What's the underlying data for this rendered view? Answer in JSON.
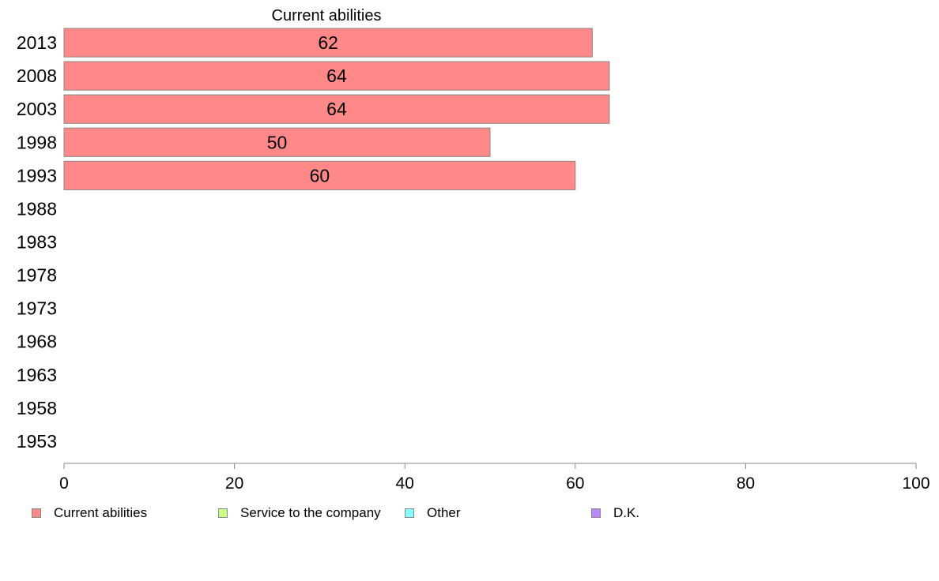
{
  "chart_data": {
    "type": "bar",
    "orientation": "horizontal",
    "stacked": true,
    "title": "Current abilities",
    "categories": [
      "2013",
      "2008",
      "2003",
      "1998",
      "1993",
      "1988",
      "1983",
      "1978",
      "1973",
      "1968",
      "1963",
      "1958",
      "1953"
    ],
    "series": [
      {
        "name": "Current abilities",
        "color": "#ff8888",
        "values": [
          62,
          64,
          64,
          50,
          60,
          null,
          null,
          null,
          null,
          null,
          null,
          null,
          null
        ],
        "labels": [
          "62",
          "64",
          "64",
          "50",
          "60"
        ]
      },
      {
        "name": "Service to the company",
        "color": "#ccff88",
        "values": [
          null,
          null,
          null,
          null,
          null,
          null,
          null,
          null,
          null,
          null,
          null,
          null,
          null
        ]
      },
      {
        "name": "Other",
        "color": "#88ffff",
        "values": [
          null,
          null,
          null,
          null,
          null,
          null,
          null,
          null,
          null,
          null,
          null,
          null,
          null
        ]
      },
      {
        "name": "D.K.",
        "color": "#bb88ff",
        "values": [
          null,
          null,
          null,
          null,
          null,
          null,
          null,
          null,
          null,
          null,
          null,
          null,
          null
        ]
      }
    ],
    "xlim": [
      0,
      100
    ],
    "xticks": [
      "0",
      "20",
      "40",
      "60",
      "80",
      "100"
    ],
    "grid": false,
    "legend_position": "bottom"
  }
}
